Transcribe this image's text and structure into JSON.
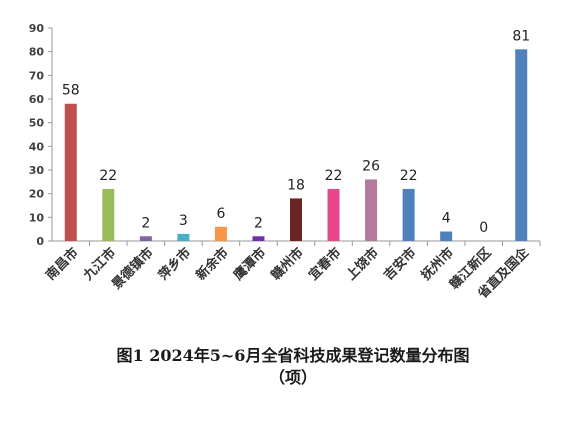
{
  "chart_data": {
    "type": "bar",
    "categories": [
      "南昌市",
      "九江市",
      "景德镇市",
      "萍乡市",
      "新余市",
      "鹰潭市",
      "赣州市",
      "宜春市",
      "上饶市",
      "吉安市",
      "抚州市",
      "赣江新区",
      "省直及国企"
    ],
    "values": [
      58,
      22,
      2,
      3,
      6,
      2,
      18,
      22,
      26,
      22,
      4,
      0,
      81
    ],
    "colors": [
      "#c0504d",
      "#9bbb59",
      "#8064a2",
      "#4bacc6",
      "#f79646",
      "#7030a0",
      "#6b2424",
      "#e8488a",
      "#b4799d",
      "#4f81bd",
      "#4f81bd",
      "#4f81bd",
      "#4f81bd"
    ],
    "ylim": [
      0,
      90
    ],
    "yticks": [
      0,
      10,
      20,
      30,
      40,
      50,
      60,
      70,
      80,
      90
    ],
    "grid": false,
    "title_line1": "图1   2024年5~6月全省科技成果登记数量分布图",
    "title_line2": "（项）"
  }
}
